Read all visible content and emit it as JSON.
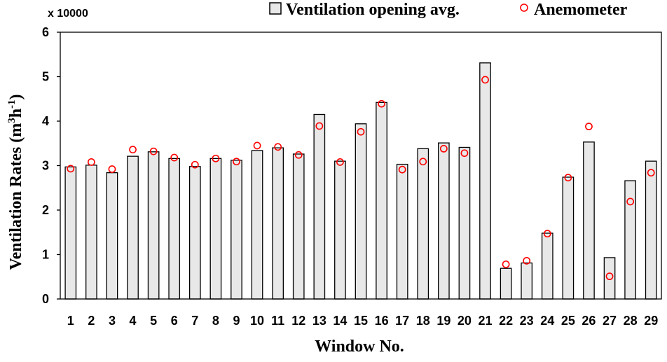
{
  "chart_data": {
    "type": "bar",
    "xlabel": "Window No.",
    "ylabel_main": "Ventilation Rates (m",
    "ylabel_sup1": "3",
    "ylabel_mid": "h",
    "ylabel_sup2": "-1",
    "ylabel_end": ")",
    "y_multiplier": "x 10000",
    "ylim": [
      0,
      6
    ],
    "yticks": [
      "0",
      "1",
      "2",
      "3",
      "4",
      "5",
      "6"
    ],
    "grid": false,
    "legend_position": "top-right",
    "categories": [
      "1",
      "2",
      "3",
      "4",
      "5",
      "6",
      "7",
      "8",
      "9",
      "10",
      "11",
      "12",
      "13",
      "14",
      "15",
      "16",
      "17",
      "18",
      "19",
      "20",
      "21",
      "22",
      "23",
      "24",
      "25",
      "26",
      "27",
      "28",
      "29"
    ],
    "series": [
      {
        "name": "Ventilation opening avg.",
        "kind": "bar",
        "color": "#e8e8e8",
        "values": [
          2.97,
          3.01,
          2.84,
          3.21,
          3.31,
          3.16,
          2.98,
          3.16,
          3.12,
          3.34,
          3.4,
          3.26,
          4.15,
          3.1,
          3.94,
          4.42,
          3.03,
          3.38,
          3.51,
          3.41,
          5.31,
          0.69,
          0.81,
          1.48,
          2.74,
          3.53,
          0.93,
          2.66,
          3.1
        ]
      },
      {
        "name": "Anemometer",
        "kind": "marker",
        "color": "#ff0000",
        "values": [
          2.93,
          3.08,
          2.92,
          3.36,
          3.32,
          3.18,
          3.02,
          3.16,
          3.09,
          3.45,
          3.42,
          3.24,
          3.89,
          3.08,
          3.76,
          4.39,
          2.91,
          3.09,
          3.38,
          3.28,
          4.93,
          0.78,
          0.86,
          1.47,
          2.73,
          3.88,
          0.51,
          2.19,
          2.84
        ]
      }
    ]
  }
}
